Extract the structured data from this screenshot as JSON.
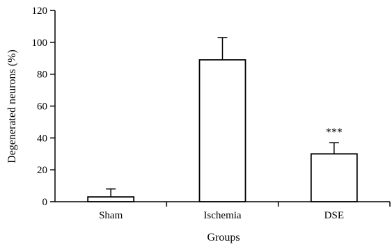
{
  "chart_data": {
    "type": "bar",
    "title": "",
    "xlabel": "Groups",
    "ylabel": "Degenerated neurons (%)",
    "categories": [
      "Sham",
      "Ischemia",
      "DSE"
    ],
    "values": [
      3,
      89,
      30
    ],
    "errors": [
      5,
      14,
      7
    ],
    "annotations": [
      "",
      "",
      "***"
    ],
    "ylim": [
      0,
      120
    ],
    "yticks": [
      0,
      20,
      40,
      60,
      80,
      100,
      120
    ],
    "grid": false,
    "bar_fill": "#ffffff",
    "bar_stroke": "#000000"
  }
}
